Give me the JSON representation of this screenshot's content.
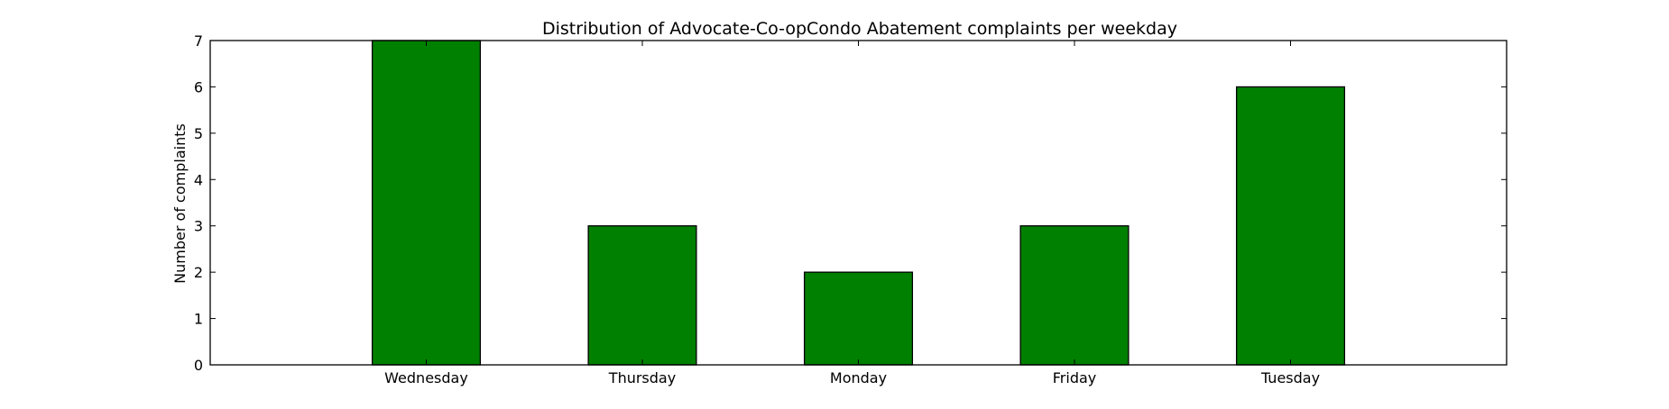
{
  "chart_data": {
    "type": "bar",
    "title": "Distribution of  Advocate-Co-opCondo Abatement complaints per weekday",
    "xlabel": "",
    "ylabel": "Number of complaints",
    "categories": [
      "Wednesday",
      "Thursday",
      "Monday",
      "Friday",
      "Tuesday"
    ],
    "values": [
      7,
      3,
      2,
      3,
      6
    ],
    "ylim": [
      0,
      7
    ],
    "yticks": [
      "0",
      "1",
      "2",
      "3",
      "4",
      "5",
      "6",
      "7"
    ],
    "grid": false,
    "legend": "none",
    "bar_color": "#008000",
    "edge_color": "#000000"
  }
}
